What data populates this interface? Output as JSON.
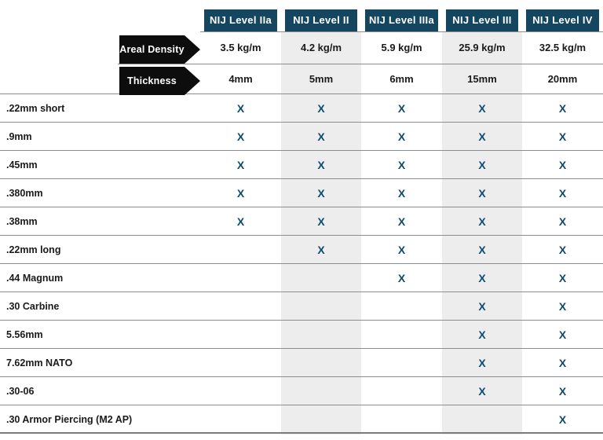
{
  "chart_data": {
    "type": "table",
    "title": "",
    "columns": [
      "NIJ Level IIa",
      "NIJ Level II",
      "NIJ Level IIIa",
      "NIJ Level III",
      "NIJ Level IV"
    ],
    "areal_density_label": "Areal Density",
    "areal_density": [
      "3.5 kg/m",
      "4.2 kg/m",
      "5.9 kg/m",
      "25.9 kg/m",
      "32.5 kg/m"
    ],
    "thickness_label": "Thickness",
    "thickness": [
      "4mm",
      "5mm",
      "6mm",
      "15mm",
      "20mm"
    ],
    "calibers": [
      ".22mm short",
      ".9mm",
      ".45mm",
      ".380mm",
      ".38mm",
      ".22mm long",
      ".44 Magnum",
      ".30 Carbine",
      "5.56mm",
      "7.62mm NATO",
      ".30-06",
      ".30 Armor Piercing (M2 AP)"
    ],
    "protection_matrix": [
      [
        1,
        1,
        1,
        1,
        1
      ],
      [
        1,
        1,
        1,
        1,
        1
      ],
      [
        1,
        1,
        1,
        1,
        1
      ],
      [
        1,
        1,
        1,
        1,
        1
      ],
      [
        1,
        1,
        1,
        1,
        1
      ],
      [
        0,
        1,
        1,
        1,
        1
      ],
      [
        0,
        0,
        1,
        1,
        1
      ],
      [
        0,
        0,
        0,
        1,
        1
      ],
      [
        0,
        0,
        0,
        1,
        1
      ],
      [
        0,
        0,
        0,
        1,
        1
      ],
      [
        0,
        0,
        0,
        1,
        1
      ],
      [
        0,
        0,
        0,
        0,
        1
      ]
    ],
    "mark_glyph": "X",
    "shaded_columns": [
      1,
      3
    ],
    "layout_hints": {
      "grid": "horizontal row dividers",
      "legend": "none"
    },
    "colors": {
      "header_bg": "#15465f",
      "mark": "#0e4a6e",
      "arrow_bg": "#0d0d0d",
      "shaded_column": "#ededed",
      "divider": "#8c8c8c",
      "bottom_border": "#7b7b7b",
      "text": "#1a1a1a"
    }
  }
}
